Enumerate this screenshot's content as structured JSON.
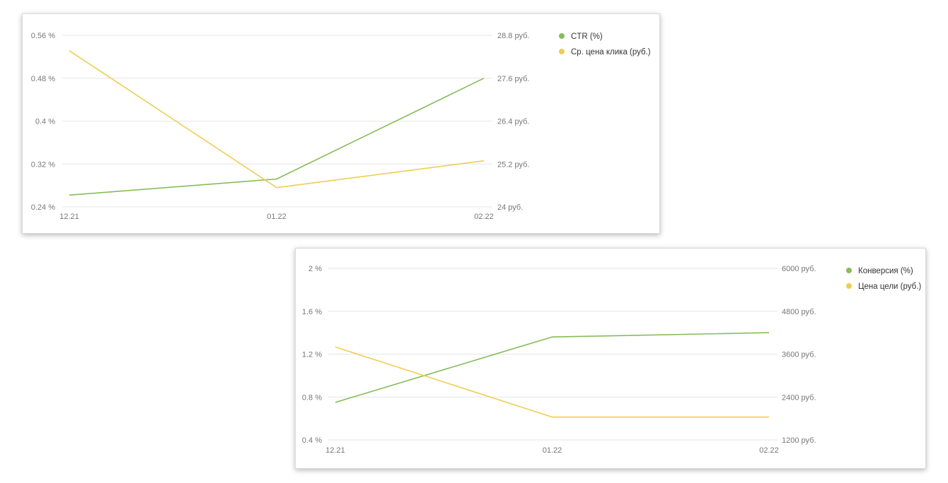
{
  "colors": {
    "series_green": "#86bd5a",
    "series_yellow": "#f0cd52",
    "grid": "#e6e6e6"
  },
  "chart_data": [
    {
      "type": "line",
      "x": [
        "12.21",
        "01.22",
        "02.22"
      ],
      "y_left": {
        "ticks": [
          "0.24 %",
          "0.32 %",
          "0.4 %",
          "0.48 %",
          "0.56 %"
        ],
        "range": [
          0.24,
          0.56
        ]
      },
      "y_right": {
        "ticks": [
          "24 руб.",
          "25.2 руб.",
          "26.4 руб.",
          "27.6 руб.",
          "28.8 руб."
        ],
        "range": [
          24,
          28.8
        ]
      },
      "grid": true,
      "legend": "right",
      "series": [
        {
          "name": "CTR (%)",
          "axis": "left",
          "color": "#86bd5a",
          "values": [
            0.262,
            0.292,
            0.48
          ]
        },
        {
          "name": "Ср. цена клика (руб.)",
          "axis": "right",
          "color": "#f0cd52",
          "values": [
            28.37,
            24.54,
            25.29
          ]
        }
      ]
    },
    {
      "type": "line",
      "x": [
        "12.21",
        "01.22",
        "02.22"
      ],
      "y_left": {
        "ticks": [
          "0.4 %",
          "0.8 %",
          "1.2 %",
          "1.6 %",
          "2 %"
        ],
        "range": [
          0.4,
          2.0
        ]
      },
      "y_right": {
        "ticks": [
          "1200 руб.",
          "2400 руб.",
          "3600 руб.",
          "4800 руб.",
          "6000 руб."
        ],
        "range": [
          1200,
          6000
        ]
      },
      "grid": true,
      "legend": "right",
      "series": [
        {
          "name": "Конверсия (%)",
          "axis": "left",
          "color": "#86bd5a",
          "values": [
            0.75,
            1.36,
            1.4
          ]
        },
        {
          "name": "Цена цели (руб.)",
          "axis": "right",
          "color": "#f0cd52",
          "values": [
            3800,
            1840,
            1840
          ]
        }
      ]
    }
  ]
}
